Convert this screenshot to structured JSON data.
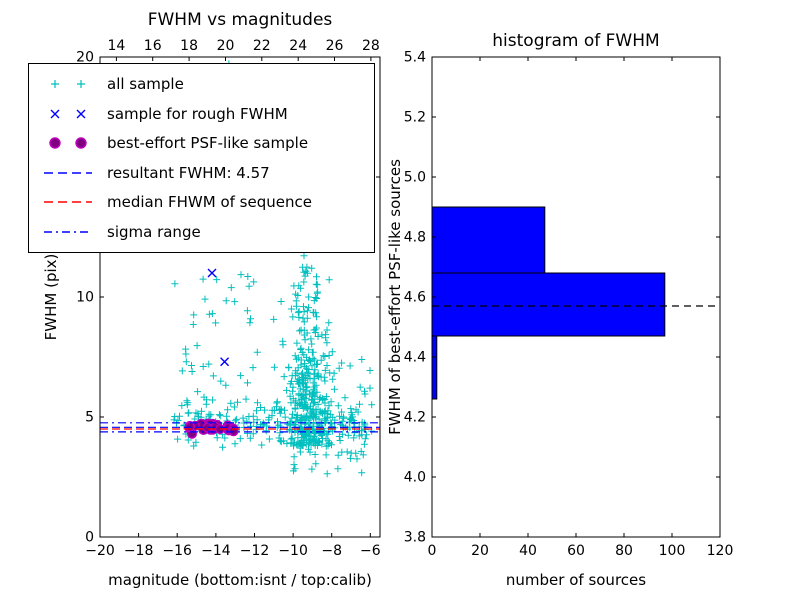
{
  "render": {
    "seed": 42
  },
  "colors": {
    "all_sample": "#00BFBF",
    "rough_sample": "#0000FF",
    "psf_fill": "#800080",
    "psf_edge": "#BF00BF",
    "resultant_line": "#0000FF",
    "median_line": "#FF0000",
    "sigma_line": "#0000FF",
    "hist_bar": "#0000FF",
    "axis": "#000000"
  },
  "legend": {
    "items": [
      {
        "label": "all sample",
        "marker": "plus-pair",
        "color": "#00BFBF"
      },
      {
        "label": "sample for rough FWHM",
        "marker": "x-pair",
        "color": "#0000FF"
      },
      {
        "label": "best-effort PSF-like sample",
        "marker": "circle-pair",
        "color": "#800080",
        "edge": "#BF00BF"
      },
      {
        "label": "resultant FWHM: 4.57",
        "marker": "dashed-line",
        "color": "#0000FF"
      },
      {
        "label": "median FHWM of sequence",
        "marker": "dashed-line",
        "color": "#FF0000"
      },
      {
        "label": "sigma range",
        "marker": "dashdot-line",
        "color": "#0000FF"
      }
    ]
  },
  "chart_data": [
    {
      "type": "scatter",
      "title": "FWHM vs magnitudes",
      "xlabel": "magnitude (bottom:isnt / top:calib)",
      "ylabel": "FWHM (pix)",
      "xlim": [
        -20,
        -5.5
      ],
      "xlim_top": [
        13.1,
        28.5
      ],
      "ylim": [
        0,
        20
      ],
      "xticks": [
        -20,
        -18,
        -16,
        -14,
        -12,
        -10,
        -8,
        -6
      ],
      "xtick_labels": [
        "−20",
        "−18",
        "−16",
        "−14",
        "−12",
        "−10",
        "−8",
        "−6"
      ],
      "xticks_top": [
        14,
        16,
        18,
        20,
        22,
        24,
        26,
        28
      ],
      "xtick_top_labels": [
        "14",
        "16",
        "18",
        "20",
        "22",
        "24",
        "26",
        "28"
      ],
      "yticks": [
        0,
        5,
        10,
        15,
        20
      ],
      "ytick_labels": [
        "0",
        "5",
        "10",
        "15",
        "20"
      ],
      "grid": false,
      "legend_position": "upper left",
      "hlines": [
        {
          "y": 4.57,
          "style": "dashed",
          "color": "#0000FF",
          "name": "resultant-fwhm",
          "label": "resultant FWHM: 4.57"
        },
        {
          "y": 4.5,
          "style": "dashed",
          "color": "#FF0000",
          "name": "median-fwhm",
          "label": "median FHWM of sequence"
        },
        {
          "y": 4.76,
          "style": "dashdot",
          "color": "#0000FF",
          "name": "sigma-upper",
          "label": "sigma range"
        },
        {
          "y": 4.38,
          "style": "dashdot",
          "color": "#0000FF",
          "name": "sigma-lower",
          "label": "sigma range"
        }
      ],
      "series": [
        {
          "name": "all sample",
          "marker": "+",
          "color": "#00BFBF",
          "clusters": [
            {
              "count": 380,
              "x": {
                "dist": "gauss",
                "mean": -9.2,
                "sd": 0.55
              },
              "y": {
                "dist": "exp",
                "min": 3.8,
                "scale": 2.9,
                "max": 20
              }
            },
            {
              "count": 200,
              "x": {
                "dist": "uniform",
                "min": -16.2,
                "max": -6.2
              },
              "y": {
                "dist": "gauss",
                "mean": 4.75,
                "sd": 0.45
              }
            },
            {
              "count": 55,
              "x": {
                "dist": "uniform",
                "min": -16.3,
                "max": -10.4
              },
              "y": {
                "dist": "uniform",
                "min": 5.2,
                "max": 13.5
              }
            },
            {
              "count": 8,
              "x": {
                "dist": "uniform",
                "min": -13.6,
                "max": -11.4
              },
              "y": {
                "dist": "uniform",
                "min": 16,
                "max": 20
              }
            },
            {
              "count": 35,
              "x": {
                "dist": "uniform",
                "min": -10.0,
                "max": -6.3
              },
              "y": {
                "dist": "uniform",
                "min": 2.6,
                "max": 4.3
              }
            },
            {
              "count": 18,
              "x": {
                "dist": "uniform",
                "min": -7.6,
                "max": -5.9
              },
              "y": {
                "dist": "uniform",
                "min": 4.3,
                "max": 7.5
              }
            }
          ]
        },
        {
          "name": "sample for rough FWHM",
          "marker": "x",
          "color": "#0000FF",
          "points": [
            [
              -14.2,
              11.0
            ],
            [
              -13.55,
              7.3
            ]
          ]
        },
        {
          "name": "best-effort PSF-like sample",
          "marker": "o",
          "fill": "#800080",
          "edge": "#BF00BF",
          "cluster": {
            "count": 30,
            "xmin": -15.45,
            "xmax": -13.05,
            "ymean": 4.55,
            "ysd": 0.1
          }
        }
      ]
    },
    {
      "type": "bar",
      "orientation": "horizontal",
      "title": "histogram of FWHM",
      "xlabel": "number of sources",
      "ylabel": "FWHM of best-effort PSF-like sources",
      "xlim": [
        0,
        120
      ],
      "ylim": [
        3.8,
        5.4
      ],
      "xticks": [
        0,
        20,
        40,
        60,
        80,
        100,
        120
      ],
      "xtick_labels": [
        "0",
        "20",
        "40",
        "60",
        "80",
        "100",
        "120"
      ],
      "yticks": [
        3.8,
        4.0,
        4.2,
        4.4,
        4.6,
        4.8,
        5.0,
        5.2,
        5.4
      ],
      "ytick_labels": [
        "3.8",
        "4.0",
        "4.2",
        "4.4",
        "4.6",
        "4.8",
        "5.0",
        "5.2",
        "5.4"
      ],
      "grid": false,
      "bar_color": "#0000FF",
      "bar_edge_color": "#000000",
      "bins": [
        {
          "from": 4.26,
          "to": 4.47,
          "count": 2
        },
        {
          "from": 4.47,
          "to": 4.68,
          "count": 97
        },
        {
          "from": 4.68,
          "to": 4.9,
          "count": 47
        }
      ],
      "marker_line": {
        "y": 4.57,
        "style": "dashed",
        "color": "#000000"
      }
    }
  ]
}
